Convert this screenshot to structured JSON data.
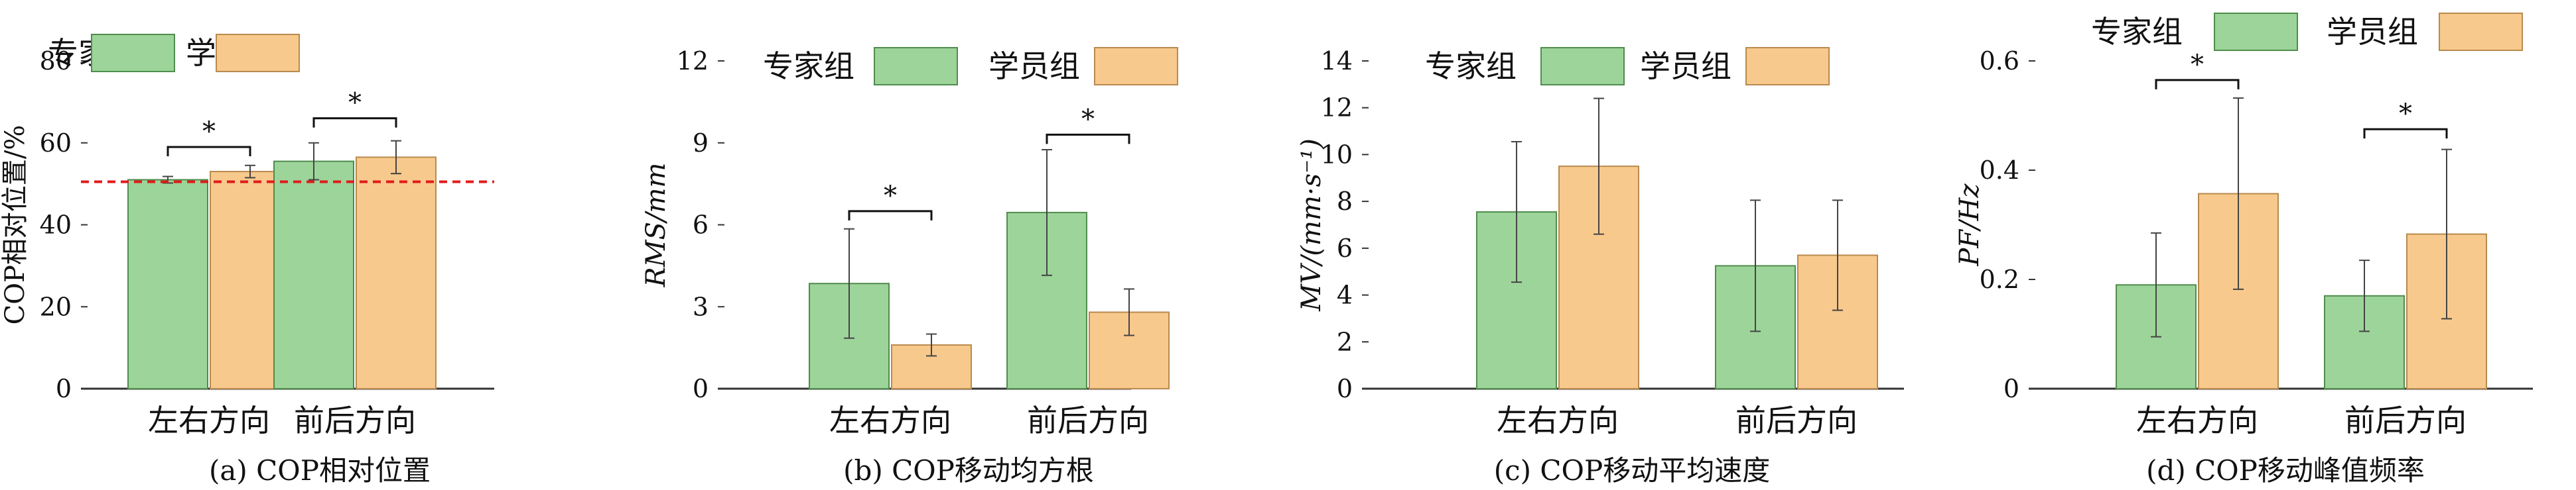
{
  "legend": {
    "expert": "专家组",
    "student": "学员组"
  },
  "colors": {
    "expert_fill": "#9dd49a",
    "expert_stroke": "#4f8d4c",
    "student_fill": "#f8c98d",
    "student_stroke": "#b98a4e",
    "ref_line": "#e01b1b",
    "error_bar": "#444444"
  },
  "chart_data": [
    {
      "type": "bar",
      "caption": "(a) COP相对位置",
      "ylabel": "COP相对位置/%",
      "categories": [
        "左右方向",
        "前后方向"
      ],
      "series": [
        {
          "name": "专家组",
          "values": [
            51,
            55.5
          ],
          "errors": [
            0.8,
            4.5
          ]
        },
        {
          "name": "学员组",
          "values": [
            53,
            56.5
          ],
          "errors": [
            1.5,
            4.0
          ]
        }
      ],
      "ylim": [
        0,
        80
      ],
      "yticks": [
        0,
        20,
        40,
        60,
        80
      ],
      "ytick_labels": [
        "0",
        "20",
        "40",
        "60",
        "80"
      ],
      "reference_line": 50.5,
      "significance": [
        {
          "category": 0,
          "y": 59,
          "label": "*"
        },
        {
          "category": 1,
          "y": 66,
          "label": "*"
        }
      ],
      "legend_position": "top"
    },
    {
      "type": "bar",
      "caption": "(b) COP移动均方根",
      "ylabel": "RMS/mm",
      "categories": [
        "左右方向",
        "前后方向"
      ],
      "series": [
        {
          "name": "专家组",
          "values": [
            3.85,
            6.45
          ],
          "errors": [
            2.0,
            2.3
          ]
        },
        {
          "name": "学员组",
          "values": [
            1.6,
            2.8
          ],
          "errors": [
            0.4,
            0.85
          ]
        }
      ],
      "ylim": [
        0,
        12
      ],
      "yticks": [
        0,
        3,
        6,
        9,
        12
      ],
      "ytick_labels": [
        "0",
        "3",
        "6",
        "9",
        "12"
      ],
      "significance": [
        {
          "category": 0,
          "y": 6.5,
          "label": "*"
        },
        {
          "category": 1,
          "y": 9.3,
          "label": "*"
        }
      ],
      "legend_position": "top"
    },
    {
      "type": "bar",
      "caption": "(c) COP移动平均速度",
      "ylabel": "MV/(mm·s⁻¹)",
      "categories": [
        "左右方向",
        "前后方向"
      ],
      "series": [
        {
          "name": "专家组",
          "values": [
            7.55,
            5.25
          ],
          "errors": [
            3.0,
            2.8
          ]
        },
        {
          "name": "学员组",
          "values": [
            9.5,
            5.7
          ],
          "errors": [
            2.9,
            2.35
          ]
        }
      ],
      "ylim": [
        0,
        14
      ],
      "yticks": [
        0,
        2,
        4,
        6,
        8,
        10,
        12,
        14
      ],
      "ytick_labels": [
        "0",
        "2",
        "4",
        "6",
        "8",
        "10",
        "12",
        "14"
      ],
      "significance": [],
      "legend_position": "top"
    },
    {
      "type": "bar",
      "caption": "(d) COP移动峰值频率",
      "ylabel": "PF/Hz",
      "categories": [
        "左右方向",
        "前后方向"
      ],
      "series": [
        {
          "name": "专家组",
          "values": [
            0.19,
            0.17
          ],
          "errors": [
            0.095,
            0.065
          ]
        },
        {
          "name": "学员组",
          "values": [
            0.357,
            0.283
          ],
          "errors": [
            0.175,
            0.155
          ]
        }
      ],
      "ylim": [
        0,
        0.6
      ],
      "yticks": [
        0,
        0.2,
        0.4,
        0.6
      ],
      "ytick_labels": [
        "0",
        "0.2",
        "0.4",
        "0.6"
      ],
      "significance": [
        {
          "category": 0,
          "y": 0.565,
          "label": "*"
        },
        {
          "category": 1,
          "y": 0.475,
          "label": "*"
        }
      ],
      "legend_position": "top"
    }
  ]
}
